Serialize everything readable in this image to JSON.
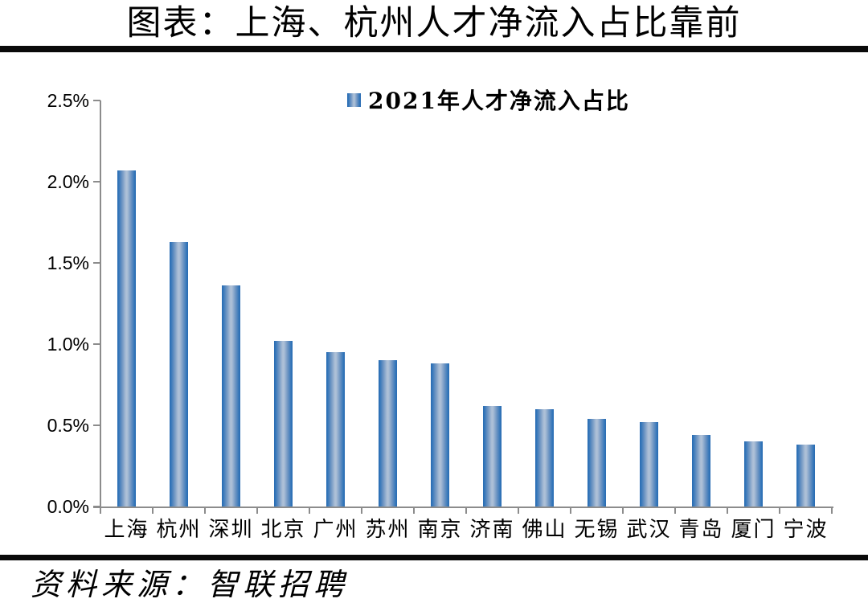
{
  "page": {
    "source": "资料来源：智联招聘"
  },
  "chart_data": {
    "type": "bar",
    "title": "图表：上海、杭州人才净流入占比靠前",
    "legend": [
      {
        "label": "2021年人才净流入占比",
        "marker": "blue-gradient-square-icon"
      }
    ],
    "legend_position": "top-center",
    "categories": [
      "上海",
      "杭州",
      "深圳",
      "北京",
      "广州",
      "苏州",
      "南京",
      "济南",
      "佛山",
      "无锡",
      "武汉",
      "青岛",
      "厦门",
      "宁波"
    ],
    "values": [
      2.07,
      1.63,
      1.36,
      1.02,
      0.95,
      0.9,
      0.88,
      0.62,
      0.6,
      0.54,
      0.52,
      0.44,
      0.4,
      0.38
    ],
    "unit": "%",
    "xlabel": "",
    "ylabel": "",
    "ylim": [
      0,
      2.5
    ],
    "yticks": [
      0.0,
      0.5,
      1.0,
      1.5,
      2.0,
      2.5
    ],
    "ytick_labels": [
      "0.0%",
      "0.5%",
      "1.0%",
      "1.5%",
      "2.0%",
      "2.5%"
    ],
    "grid": false,
    "colors": {
      "bar_edge": "#2E74B5",
      "bar_center": "#A9BDD5",
      "axis": "#8C8C8C",
      "text": "#000000",
      "divider": "#0A0A0A"
    }
  }
}
